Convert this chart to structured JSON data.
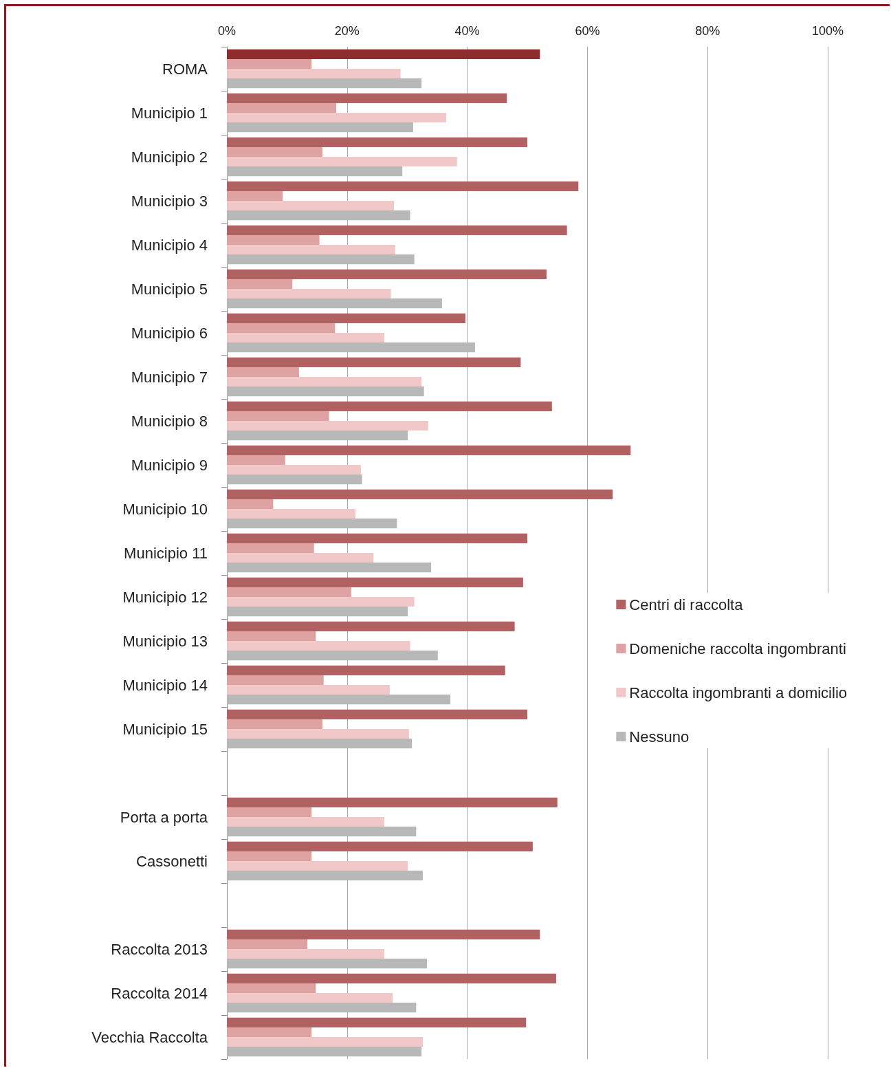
{
  "chart_data": {
    "type": "bar",
    "orientation": "horizontal",
    "categories": [
      "ROMA",
      "Municipio 1",
      "Municipio 2",
      "Municipio 3",
      "Municipio 4",
      "Municipio 5",
      "Municipio 6",
      "Municipio 7",
      "Municipio 8",
      "Municipio 9",
      "Municipio 10",
      "Municipio 11",
      "Municipio 12",
      "Municipio 13",
      "Municipio 14",
      "Municipio 15",
      null,
      "Porta a porta",
      "Cassonetti",
      null,
      "Raccolta 2013",
      "Raccolta 2014",
      "Vecchia Raccolta"
    ],
    "series": [
      {
        "name": "Centri di raccolta",
        "color": "#b06262",
        "colors": [
          "#8e2d2d",
          "#b06262",
          "#b06262",
          "#b06262",
          "#b06262",
          "#b06262",
          "#b06262",
          "#b06262",
          "#b06262",
          "#b06262",
          "#b06262",
          "#b06262",
          "#b06262",
          "#b06262",
          "#b06262",
          "#b06262",
          "#b06262",
          "#b06262",
          "#b06262",
          "#b06262",
          "#b06262",
          "#b06262",
          "#b06262"
        ],
        "values": [
          52.1,
          46.6,
          50.0,
          58.5,
          56.6,
          53.2,
          39.7,
          48.9,
          54.1,
          67.2,
          64.2,
          50.0,
          49.3,
          47.9,
          46.3,
          50.0,
          null,
          55.0,
          50.9,
          null,
          52.1,
          54.8,
          49.8
        ]
      },
      {
        "name": "Domeniche raccolta ingombranti",
        "color": "#dea2a2",
        "values": [
          14.1,
          18.2,
          15.9,
          9.3,
          15.4,
          10.9,
          18.0,
          12.0,
          17.0,
          9.7,
          7.7,
          14.5,
          20.7,
          14.8,
          16.1,
          15.9,
          null,
          14.1,
          14.1,
          null,
          13.4,
          14.8,
          14.1
        ]
      },
      {
        "name": "Raccolta ingombranti a domicilio",
        "color": "#f0c8c8",
        "values": [
          28.9,
          36.5,
          38.3,
          27.8,
          28.0,
          27.3,
          26.2,
          32.4,
          33.5,
          22.3,
          21.4,
          24.4,
          31.2,
          30.5,
          27.1,
          30.3,
          null,
          26.2,
          30.1,
          null,
          26.2,
          27.6,
          32.6
        ]
      },
      {
        "name": "Nessuno",
        "color": "#b8b8b8",
        "values": [
          32.4,
          31.0,
          29.2,
          30.5,
          31.2,
          35.8,
          41.3,
          32.8,
          30.1,
          22.5,
          28.3,
          34.0,
          30.1,
          35.1,
          37.2,
          30.8,
          null,
          31.5,
          32.6,
          null,
          33.3,
          31.5,
          32.4
        ]
      }
    ],
    "xlim": [
      0,
      100
    ],
    "xticks": [
      {
        "value": 0,
        "label": "0%"
      },
      {
        "value": 20,
        "label": "20%"
      },
      {
        "value": 40,
        "label": "40%"
      },
      {
        "value": 60,
        "label": "60%"
      },
      {
        "value": 80,
        "label": "80%"
      },
      {
        "value": 100,
        "label": "100%"
      }
    ],
    "grid": "x",
    "legend": "right"
  }
}
